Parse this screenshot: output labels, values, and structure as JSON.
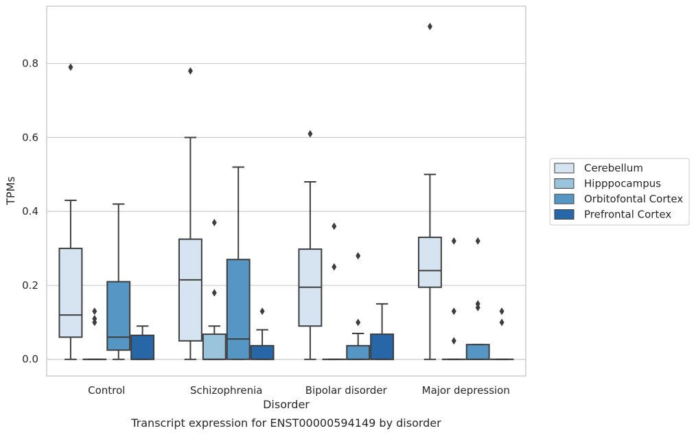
{
  "chart_data": {
    "type": "boxplot",
    "caption": "Transcript expression for ENST00000594149 by disorder",
    "xlabel": "Disorder",
    "ylabel": "TPMs",
    "ylim": [
      -0.045,
      0.955
    ],
    "yticks": [
      0.0,
      0.2,
      0.4,
      0.6,
      0.8
    ],
    "ytick_labels": [
      "0.0",
      "0.2",
      "0.4",
      "0.6",
      "0.8"
    ],
    "grid": "horizontal",
    "legend_position": "right",
    "categories": [
      "Control",
      "Schizophrenia",
      "Bipolar disorder",
      "Major depression"
    ],
    "series": [
      {
        "name": "Cerebellum",
        "color": "#d6e4f2",
        "boxes": [
          {
            "whislo": 0.0,
            "q1": 0.06,
            "med": 0.12,
            "q3": 0.3,
            "whishi": 0.43,
            "fliers": [
              0.79
            ]
          },
          {
            "whislo": 0.0,
            "q1": 0.05,
            "med": 0.215,
            "q3": 0.325,
            "whishi": 0.6,
            "fliers": [
              0.78
            ]
          },
          {
            "whislo": 0.0,
            "q1": 0.09,
            "med": 0.195,
            "q3": 0.298,
            "whishi": 0.48,
            "fliers": [
              0.61
            ]
          },
          {
            "whislo": 0.0,
            "q1": 0.195,
            "med": 0.24,
            "q3": 0.33,
            "whishi": 0.5,
            "fliers": [
              0.9
            ]
          }
        ]
      },
      {
        "name": "Hipppocampus",
        "color": "#9ac3dc",
        "boxes": [
          {
            "whislo": 0.0,
            "q1": 0.0,
            "med": 0.0,
            "q3": 0.0,
            "whishi": 0.0,
            "fliers": [
              0.13,
              0.11,
              0.1
            ]
          },
          {
            "whislo": 0.0,
            "q1": 0.0,
            "med": 0.0,
            "q3": 0.068,
            "whishi": 0.09,
            "fliers": [
              0.37,
              0.18
            ]
          },
          {
            "whislo": 0.0,
            "q1": 0.0,
            "med": 0.0,
            "q3": 0.0,
            "whishi": 0.0,
            "fliers": [
              0.36,
              0.25
            ]
          },
          {
            "whislo": 0.0,
            "q1": 0.0,
            "med": 0.0,
            "q3": 0.0,
            "whishi": 0.0,
            "fliers": [
              0.32,
              0.13,
              0.05
            ]
          }
        ]
      },
      {
        "name": "Orbitofontal Cortex",
        "color": "#5596c4",
        "boxes": [
          {
            "whislo": 0.0,
            "q1": 0.025,
            "med": 0.06,
            "q3": 0.21,
            "whishi": 0.42,
            "fliers": []
          },
          {
            "whislo": 0.0,
            "q1": 0.0,
            "med": 0.055,
            "q3": 0.27,
            "whishi": 0.52,
            "fliers": []
          },
          {
            "whislo": 0.0,
            "q1": 0.0,
            "med": 0.0,
            "q3": 0.037,
            "whishi": 0.07,
            "fliers": [
              0.28,
              0.1
            ]
          },
          {
            "whislo": 0.0,
            "q1": 0.0,
            "med": 0.0,
            "q3": 0.04,
            "whishi": 0.04,
            "fliers": [
              0.32,
              0.15,
              0.14
            ]
          }
        ]
      },
      {
        "name": "Prefrontal Cortex",
        "color": "#2767a8",
        "boxes": [
          {
            "whislo": 0.0,
            "q1": 0.0,
            "med": 0.0,
            "q3": 0.065,
            "whishi": 0.09,
            "fliers": []
          },
          {
            "whislo": 0.0,
            "q1": 0.0,
            "med": 0.0,
            "q3": 0.037,
            "whishi": 0.08,
            "fliers": [
              0.13
            ]
          },
          {
            "whislo": 0.0,
            "q1": 0.0,
            "med": 0.0,
            "q3": 0.068,
            "whishi": 0.15,
            "fliers": []
          },
          {
            "whislo": 0.0,
            "q1": 0.0,
            "med": 0.0,
            "q3": 0.0,
            "whishi": 0.0,
            "fliers": [
              0.13,
              0.1
            ]
          }
        ]
      }
    ]
  }
}
